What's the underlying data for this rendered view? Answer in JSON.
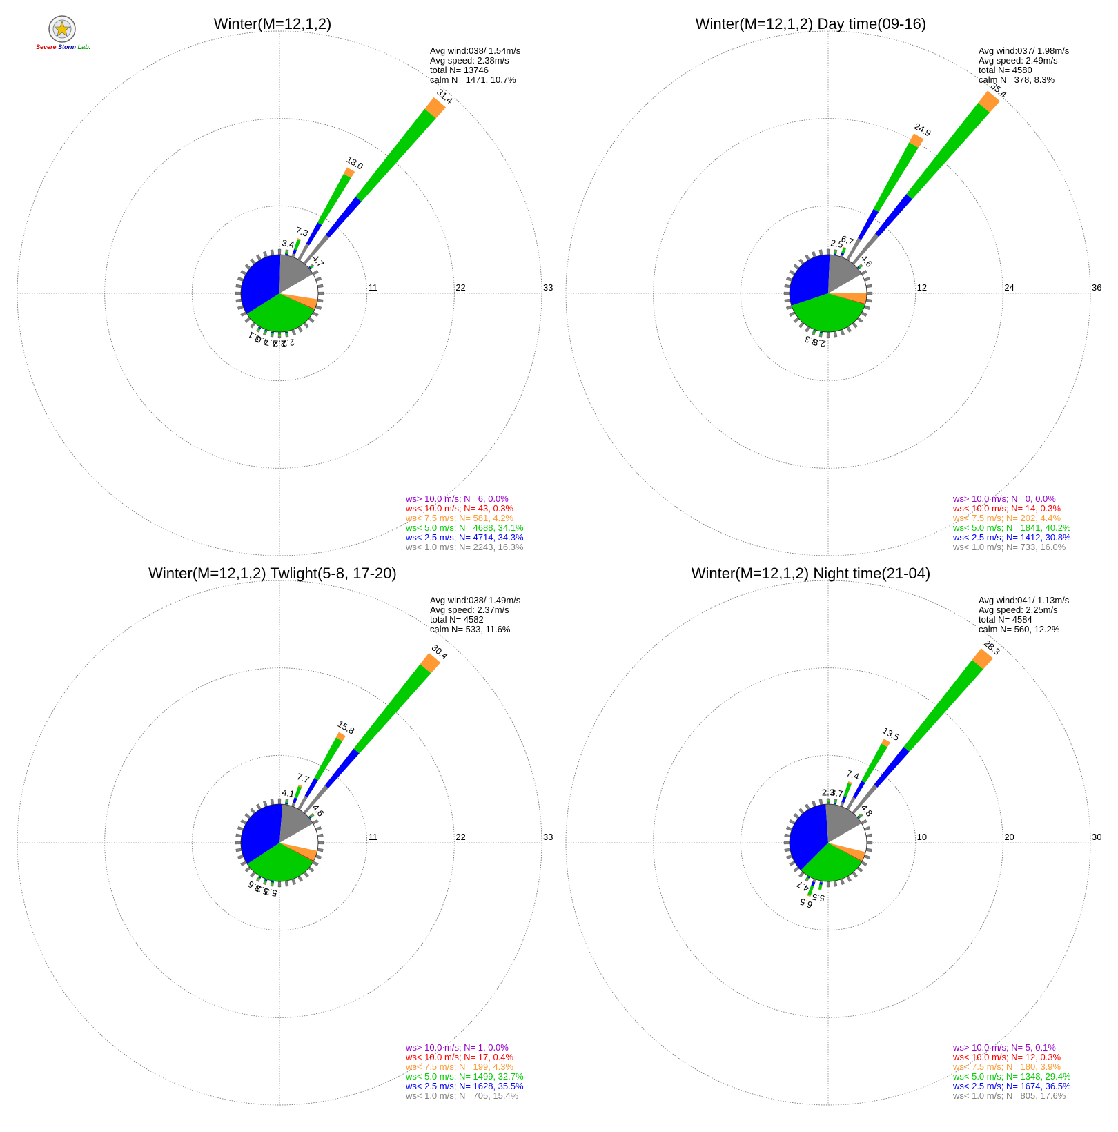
{
  "logo": {
    "line1": "Severe",
    "line2": "Storm",
    "line3": "Lab."
  },
  "colors": {
    "calm_pie_white": "#ffffff",
    "ws_gt_10": "#9900cc",
    "ws_lt_10": "#ff0000",
    "ws_lt_7_5": "#ff9933",
    "ws_lt_5": "#00cc00",
    "ws_lt_2_5": "#0000ff",
    "ws_lt_1": "#808080",
    "ring": "#777777"
  },
  "chart_data": [
    {
      "type": "wind-rose",
      "title": "Winter(M=12,1,2)",
      "stats": [
        "Avg wind:038/ 1.54m/s",
        "Avg speed: 2.38m/s",
        "total N=       13746",
        "calm N=   1471,  10.7%"
      ],
      "rings": [
        "11",
        "22",
        "33"
      ],
      "rmax": 33,
      "labeled_petals": [
        {
          "dir": 40,
          "total": 31.4,
          "label": "31.4"
        },
        {
          "dir": 30,
          "total": 18.0,
          "label": "18.0"
        },
        {
          "dir": 20,
          "total": 7.3,
          "label": "7.3"
        },
        {
          "dir": 10,
          "total": 3.4,
          "label": "3.4"
        },
        {
          "dir": 50,
          "total": 4.7,
          "label": "4.7"
        },
        {
          "dir": 190,
          "total": 4.7,
          "label": "4.7"
        },
        {
          "dir": 200,
          "total": 4.6,
          "label": "4.6"
        },
        {
          "dir": 210,
          "total": 3.1,
          "label": "3.1"
        },
        {
          "dir": 170,
          "total": 2.2,
          "label": "2.2"
        },
        {
          "dir": 180,
          "total": 2.2,
          "label": "2.2"
        }
      ],
      "pie": [
        0.163,
        0.343,
        0.341,
        0.042,
        0.003,
        0.0
      ],
      "legend": [
        "ws> 10.0 m/s; N=      6,  0.0%",
        "ws< 10.0 m/s; N=     43,  0.3%",
        "ws<  7.5 m/s; N=    581,  4.2%",
        "ws<  5.0 m/s; N=  4688, 34.1%",
        "ws<  2.5 m/s; N=  4714, 34.3%",
        "ws<  1.0 m/s; N=  2243, 16.3%"
      ]
    },
    {
      "type": "wind-rose",
      "title": "Winter(M=12,1,2) Day time(09-16)",
      "stats": [
        "Avg wind:037/ 1.98m/s",
        "Avg speed: 2.49m/s",
        "total N=        4580",
        "calm N=    378,   8.3%"
      ],
      "rings": [
        "12",
        "24",
        "36"
      ],
      "rmax": 36,
      "labeled_petals": [
        {
          "dir": 40,
          "total": 35.4,
          "label": "35.4"
        },
        {
          "dir": 30,
          "total": 24.9,
          "label": "24.9"
        },
        {
          "dir": 20,
          "total": 6.7,
          "label": "6.7"
        },
        {
          "dir": 10,
          "total": 2.5,
          "label": "2.5"
        },
        {
          "dir": 50,
          "total": 4.6,
          "label": "4.6"
        },
        {
          "dir": 190,
          "total": 2.8,
          "label": "2.8"
        },
        {
          "dir": 200,
          "total": 3.3,
          "label": "3.3"
        }
      ],
      "pie": [
        0.16,
        0.308,
        0.402,
        0.044,
        0.003,
        0.0
      ],
      "legend": [
        "ws> 10.0 m/s; N=      0,  0.0%",
        "ws< 10.0 m/s; N=     14,  0.3%",
        "ws<  7.5 m/s; N=    202,  4.4%",
        "ws<  5.0 m/s; N=  1841, 40.2%",
        "ws<  2.5 m/s; N=  1412, 30.8%",
        "ws<  1.0 m/s; N=    733, 16.0%"
      ]
    },
    {
      "type": "wind-rose",
      "title": "Winter(M=12,1,2) Twlight(5-8, 17-20)",
      "stats": [
        "Avg wind:038/ 1.49m/s",
        "Avg speed: 2.37m/s",
        "total N=        4582",
        "calm N=    533,  11.6%"
      ],
      "rings": [
        "11",
        "22",
        "33"
      ],
      "rmax": 33,
      "labeled_petals": [
        {
          "dir": 40,
          "total": 30.4,
          "label": "30.4"
        },
        {
          "dir": 30,
          "total": 15.8,
          "label": "15.8"
        },
        {
          "dir": 20,
          "total": 7.7,
          "label": "7.7"
        },
        {
          "dir": 10,
          "total": 4.1,
          "label": "4.1"
        },
        {
          "dir": 50,
          "total": 4.6,
          "label": "4.6"
        },
        {
          "dir": 190,
          "total": 5.3,
          "label": "5.3"
        },
        {
          "dir": 200,
          "total": 5.3,
          "label": "5.3"
        },
        {
          "dir": 210,
          "total": 3.6,
          "label": "3.6"
        }
      ],
      "pie": [
        0.154,
        0.355,
        0.327,
        0.043,
        0.004,
        0.0
      ],
      "legend": [
        "ws> 10.0 m/s; N=      1,  0.0%",
        "ws< 10.0 m/s; N=     17,  0.4%",
        "ws<  7.5 m/s; N=    199,  4.3%",
        "ws<  5.0 m/s; N=  1499, 32.7%",
        "ws<  2.5 m/s; N=  1628, 35.5%",
        "ws<  1.0 m/s; N=    705, 15.4%"
      ]
    },
    {
      "type": "wind-rose",
      "title": "Winter(M=12,1,2) Night time(21-04)",
      "stats": [
        "Avg wind:041/ 1.13m/s",
        "Avg speed: 2.25m/s",
        "total N=        4584",
        "calm N=    560,  12.2%"
      ],
      "rings": [
        "10",
        "20",
        "30"
      ],
      "rmax": 30,
      "labeled_petals": [
        {
          "dir": 40,
          "total": 28.3,
          "label": "28.3"
        },
        {
          "dir": 30,
          "total": 13.5,
          "label": "13.5"
        },
        {
          "dir": 20,
          "total": 7.4,
          "label": "7.4"
        },
        {
          "dir": 10,
          "total": 3.7,
          "label": "3.7"
        },
        {
          "dir": 0,
          "total": 2.3,
          "label": "2.3"
        },
        {
          "dir": 50,
          "total": 4.8,
          "label": "4.8"
        },
        {
          "dir": 190,
          "total": 5.5,
          "label": "5.5"
        },
        {
          "dir": 200,
          "total": 6.5,
          "label": "6.5"
        },
        {
          "dir": 210,
          "total": 4.7,
          "label": "4.7"
        }
      ],
      "pie": [
        0.176,
        0.365,
        0.294,
        0.039,
        0.003,
        0.001
      ],
      "legend": [
        "ws> 10.0 m/s; N=      5,  0.1%",
        "ws< 10.0 m/s; N=     12,  0.3%",
        "ws<  7.5 m/s; N=    180,  3.9%",
        "ws<  5.0 m/s; N=  1348, 29.4%",
        "ws<  2.5 m/s; N=  1674, 36.5%",
        "ws<  1.0 m/s; N=    805, 17.6%"
      ]
    }
  ]
}
